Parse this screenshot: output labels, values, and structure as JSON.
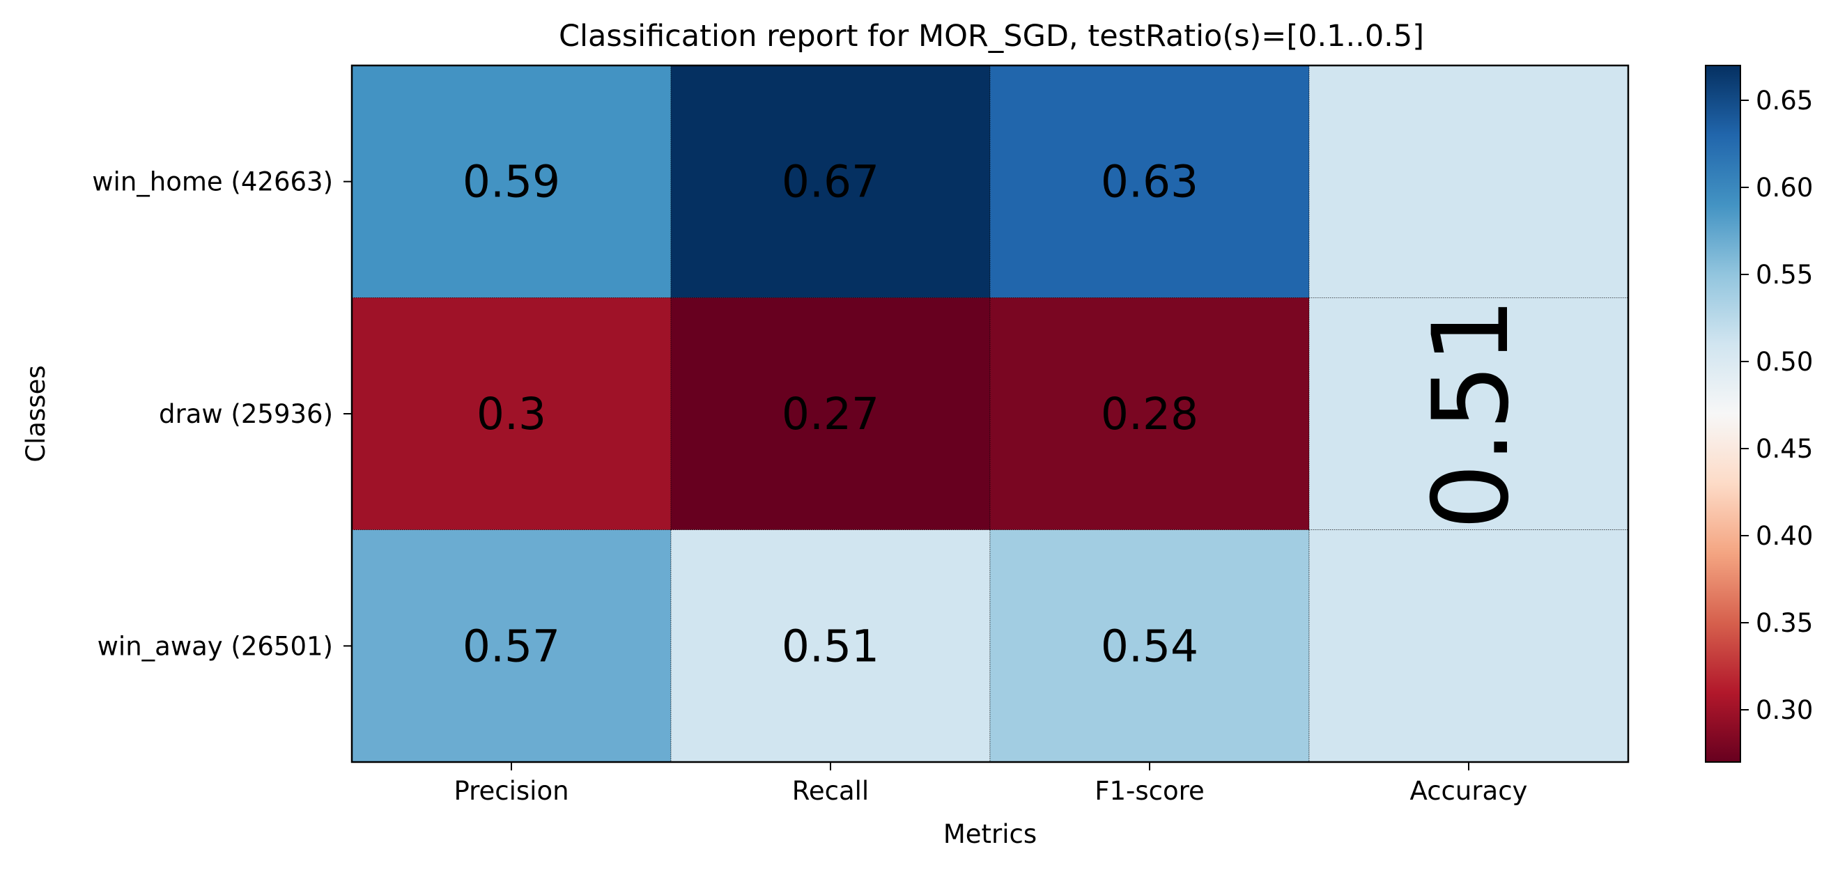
{
  "chart_data": {
    "type": "heatmap",
    "title": "Classification report for MOR_SGD, testRatio(s)=[0.1..0.5]",
    "xlabel": "Metrics",
    "ylabel": "Classes",
    "x_categories": [
      "Precision",
      "Recall",
      "F1-score",
      "Accuracy"
    ],
    "y_categories": [
      "win_home (42663)",
      "draw (25936)",
      "win_away (26501)"
    ],
    "values": [
      [
        0.59,
        0.67,
        0.63
      ],
      [
        0.3,
        0.27,
        0.28
      ],
      [
        0.57,
        0.51,
        0.54
      ]
    ],
    "value_labels": [
      [
        "0.59",
        "0.67",
        "0.63"
      ],
      [
        "0.3",
        "0.27",
        "0.28"
      ],
      [
        "0.57",
        "0.51",
        "0.54"
      ]
    ],
    "accuracy": 0.51,
    "accuracy_label": "0.51",
    "colormap": "RdBu",
    "color_range": [
      0.27,
      0.67
    ],
    "colorbar_ticks": [
      "0.30",
      "0.35",
      "0.40",
      "0.45",
      "0.50",
      "0.55",
      "0.60",
      "0.65"
    ],
    "colorbar_tick_values": [
      0.3,
      0.35,
      0.4,
      0.45,
      0.5,
      0.55,
      0.6,
      0.65
    ],
    "grid": false
  }
}
